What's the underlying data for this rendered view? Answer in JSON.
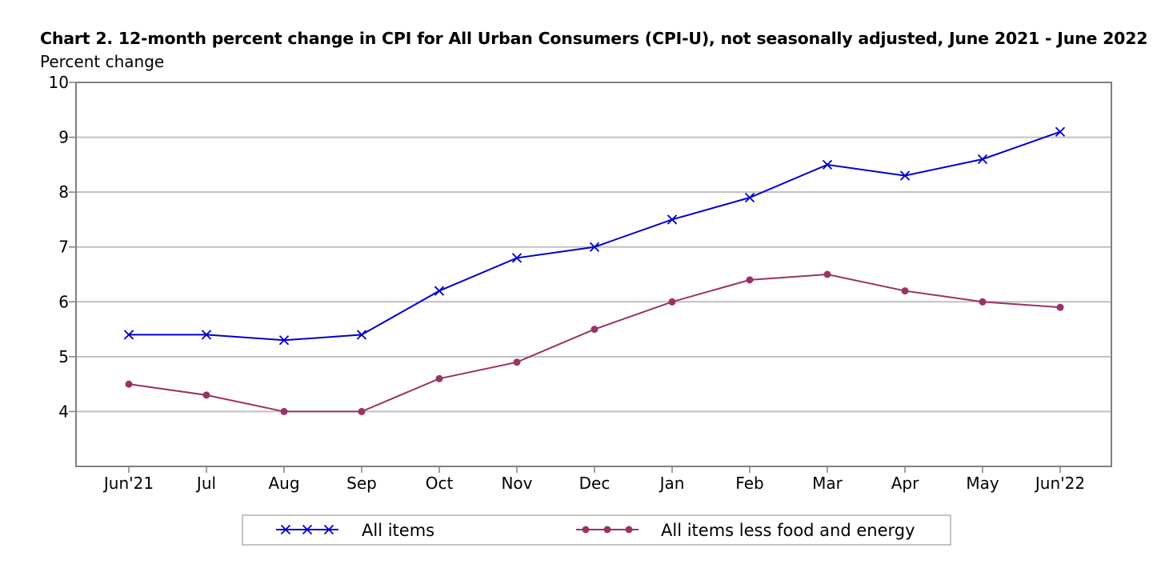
{
  "chart_data": {
    "type": "line",
    "title": "Chart 2. 12-month percent change in CPI for All Urban Consumers (CPI-U), not seasonally adjusted, June 2021 - June 2022",
    "xlabel": "",
    "ylabel": "Percent change",
    "categories": [
      "Jun'21",
      "Jul",
      "Aug",
      "Sep",
      "Oct",
      "Nov",
      "Dec",
      "Jan",
      "Feb",
      "Mar",
      "Apr",
      "May",
      "Jun'22"
    ],
    "ylim": [
      3,
      10
    ],
    "yticks": [
      4,
      5,
      6,
      7,
      8,
      9,
      10
    ],
    "grid": true,
    "legend_position": "bottom",
    "series": [
      {
        "name": "All items",
        "color": "#0000cc",
        "marker": "x",
        "values": [
          5.4,
          5.4,
          5.3,
          5.4,
          6.2,
          6.8,
          7.0,
          7.5,
          7.9,
          8.5,
          8.3,
          8.6,
          9.1
        ]
      },
      {
        "name": "All items less food and energy",
        "color": "#993366",
        "marker": "circle",
        "values": [
          4.5,
          4.3,
          4.0,
          4.0,
          4.6,
          4.9,
          5.5,
          6.0,
          6.4,
          6.5,
          6.2,
          6.0,
          5.9
        ]
      }
    ]
  }
}
